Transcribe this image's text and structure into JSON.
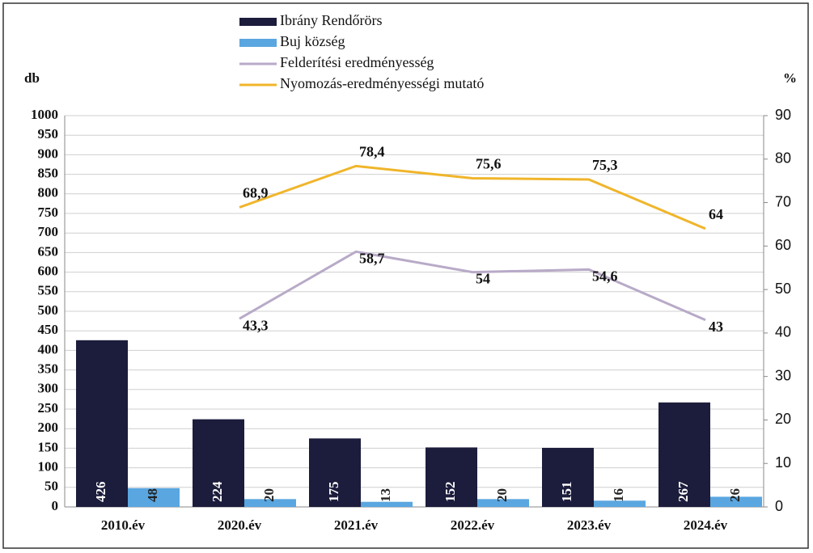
{
  "chart_data": {
    "type": "bar_line",
    "y_label": "db",
    "y2_label": "%",
    "categories": [
      "2010.év",
      "2020.év",
      "2021.év",
      "2022.év",
      "2023.év",
      "2024.év"
    ],
    "series": [
      {
        "name": "Ibrány Rendőrörs",
        "type": "bar",
        "color": "#1c1c3c",
        "values": [
          426,
          224,
          175,
          152,
          151,
          267
        ]
      },
      {
        "name": "Buj község",
        "type": "bar",
        "color": "#5aa6e0",
        "values": [
          48,
          20,
          13,
          20,
          16,
          26
        ]
      },
      {
        "name": "Felderítési eredményesség",
        "type": "line",
        "axis": "y2",
        "color": "#b8aac8",
        "values": [
          null,
          43.3,
          58.7,
          54,
          54.6,
          43
        ],
        "value_labels": [
          null,
          "43,3",
          "58,7",
          "54",
          "54,6",
          "43"
        ]
      },
      {
        "name": "Nyomozás-eredményességi mutató",
        "type": "line",
        "axis": "y2",
        "color": "#f0b52a",
        "values": [
          null,
          68.9,
          78.4,
          75.6,
          75.3,
          64
        ],
        "value_labels": [
          null,
          "68,9",
          "78,4",
          "75,6",
          "75,3",
          "64"
        ]
      }
    ],
    "ylim": [
      0,
      1000
    ],
    "yticks": [
      0,
      50,
      100,
      150,
      200,
      250,
      300,
      350,
      400,
      450,
      500,
      550,
      600,
      650,
      700,
      750,
      800,
      850,
      900,
      950,
      1000
    ],
    "y2lim": [
      0,
      90
    ],
    "y2ticks": [
      0,
      10,
      20,
      30,
      40,
      50,
      60,
      70,
      80,
      90
    ],
    "grid": true
  }
}
